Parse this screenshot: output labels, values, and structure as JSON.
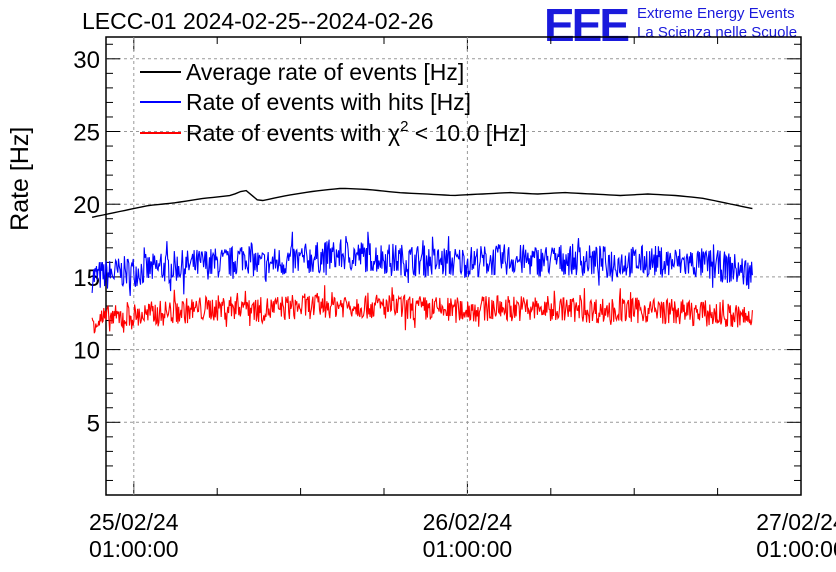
{
  "chart_data": {
    "type": "line",
    "title": "LECC-01 2024-02-25--2024-02-26",
    "ylabel": "Rate [Hz]",
    "xlabel": "",
    "ylim": [
      0,
      31.5
    ],
    "yticks": [
      5,
      10,
      15,
      20,
      25,
      30
    ],
    "xlim": [
      "2024-02-24 23:00:00",
      "2024-02-27 01:00:00"
    ],
    "xticks": [
      {
        "time": "2024-02-25 01:00:00",
        "date": "25/02/24",
        "clock": "01:00:00"
      },
      {
        "time": "2024-02-26 01:00:00",
        "date": "26/02/24",
        "clock": "01:00:00"
      },
      {
        "time": "2024-02-27 01:00:00",
        "date": "27/02/24",
        "clock": "01:00:00"
      }
    ],
    "grid": true,
    "legend_position": "top-left",
    "series": [
      {
        "name": "Average rate of events [Hz]",
        "color": "#000000",
        "x": [
          "2024-02-24 22:00",
          "2024-02-25 00:00",
          "2024-02-25 02:00",
          "2024-02-25 04:00",
          "2024-02-25 06:00",
          "2024-02-25 08:00",
          "2024-02-25 09:00",
          "2024-02-25 10:00",
          "2024-02-25 12:00",
          "2024-02-25 14:00",
          "2024-02-25 16:00",
          "2024-02-25 18:00",
          "2024-02-25 20:00",
          "2024-02-25 22:00",
          "2024-02-26 00:00",
          "2024-02-26 02:00",
          "2024-02-26 04:00",
          "2024-02-26 06:00",
          "2024-02-26 08:00",
          "2024-02-26 10:00",
          "2024-02-26 12:00",
          "2024-02-26 14:00",
          "2024-02-26 16:00",
          "2024-02-26 18:00",
          "2024-02-26 20:00",
          "2024-02-26 21:30"
        ],
        "values": [
          19.1,
          19.5,
          19.9,
          20.1,
          20.4,
          20.6,
          21.0,
          20.2,
          20.6,
          20.9,
          21.1,
          21.0,
          20.8,
          20.7,
          20.6,
          20.7,
          20.8,
          20.7,
          20.8,
          20.7,
          20.6,
          20.7,
          20.6,
          20.4,
          20.0,
          19.7
        ]
      },
      {
        "name": "Rate of events with hits [Hz]",
        "color": "#0000ff",
        "x": [
          "2024-02-24 22:00",
          "2024-02-25 00:00",
          "2024-02-25 02:00",
          "2024-02-25 04:00",
          "2024-02-25 06:00",
          "2024-02-25 08:00",
          "2024-02-25 09:00",
          "2024-02-25 10:00",
          "2024-02-25 12:00",
          "2024-02-25 14:00",
          "2024-02-25 16:00",
          "2024-02-25 18:00",
          "2024-02-25 20:00",
          "2024-02-25 22:00",
          "2024-02-26 00:00",
          "2024-02-26 02:00",
          "2024-02-26 04:00",
          "2024-02-26 06:00",
          "2024-02-26 08:00",
          "2024-02-26 10:00",
          "2024-02-26 12:00",
          "2024-02-26 14:00",
          "2024-02-26 16:00",
          "2024-02-26 18:00",
          "2024-02-26 20:00",
          "2024-02-26 21:30"
        ],
        "values": [
          15.0,
          15.3,
          15.5,
          15.7,
          15.9,
          16.0,
          16.5,
          15.8,
          16.1,
          16.3,
          16.5,
          16.4,
          16.2,
          16.1,
          16.0,
          16.1,
          16.2,
          16.1,
          16.2,
          16.1,
          16.0,
          16.1,
          16.0,
          15.9,
          15.6,
          15.2
        ]
      },
      {
        "name": "Rate of events with χ² < 10.0 [Hz]",
        "name_parts": {
          "before": "Rate of events with ",
          "symbol": "χ",
          "sup": "2",
          "after": " < 10.0 [Hz]"
        },
        "color": "#ff0000",
        "x": [
          "2024-02-24 22:00",
          "2024-02-25 00:00",
          "2024-02-25 02:00",
          "2024-02-25 04:00",
          "2024-02-25 06:00",
          "2024-02-25 08:00",
          "2024-02-25 09:00",
          "2024-02-25 10:00",
          "2024-02-25 12:00",
          "2024-02-25 14:00",
          "2024-02-25 16:00",
          "2024-02-25 18:00",
          "2024-02-25 20:00",
          "2024-02-25 22:00",
          "2024-02-26 00:00",
          "2024-02-26 02:00",
          "2024-02-26 04:00",
          "2024-02-26 06:00",
          "2024-02-26 08:00",
          "2024-02-26 10:00",
          "2024-02-26 12:00",
          "2024-02-26 14:00",
          "2024-02-26 16:00",
          "2024-02-26 18:00",
          "2024-02-26 20:00",
          "2024-02-26 21:30"
        ],
        "values": [
          12.0,
          12.2,
          12.4,
          12.6,
          12.8,
          12.9,
          13.2,
          12.7,
          12.9,
          13.0,
          13.1,
          13.0,
          12.9,
          12.8,
          12.7,
          12.8,
          12.9,
          12.8,
          12.8,
          12.7,
          12.7,
          12.7,
          12.6,
          12.5,
          12.3,
          12.1
        ]
      }
    ]
  },
  "logo": {
    "mark": "EEE",
    "line1": "Extreme Energy Events",
    "line2": "La Scienza nelle Scuole",
    "color": "#1a1adc"
  }
}
